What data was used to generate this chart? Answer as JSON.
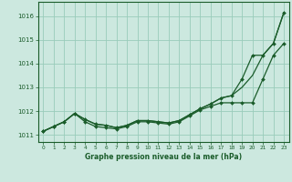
{
  "xlabel": "Graphe pression niveau de la mer (hPa)",
  "bg_color": "#cce8df",
  "grid_color": "#99ccbb",
  "line_color": "#1a5c2a",
  "text_color": "#1a5c2a",
  "ylim": [
    1010.7,
    1016.6
  ],
  "xlim": [
    -0.5,
    23.5
  ],
  "yticks": [
    1011,
    1012,
    1013,
    1014,
    1015,
    1016
  ],
  "xticks": [
    0,
    1,
    2,
    3,
    4,
    5,
    6,
    7,
    8,
    9,
    10,
    11,
    12,
    13,
    14,
    15,
    16,
    17,
    18,
    19,
    20,
    21,
    22,
    23
  ],
  "series_smooth": [
    1011.15,
    1011.35,
    1011.55,
    1011.9,
    1011.65,
    1011.45,
    1011.4,
    1011.3,
    1011.4,
    1011.6,
    1011.6,
    1011.55,
    1011.5,
    1011.6,
    1011.85,
    1012.1,
    1012.3,
    1012.55,
    1012.65,
    1013.0,
    1013.5,
    1014.35,
    1014.85,
    1016.15
  ],
  "series_top": [
    1011.15,
    1011.35,
    1011.55,
    1011.9,
    1011.65,
    1011.45,
    1011.4,
    1011.3,
    1011.4,
    1011.6,
    1011.6,
    1011.55,
    1011.5,
    1011.6,
    1011.85,
    1012.1,
    1012.3,
    1012.55,
    1012.65,
    1013.35,
    1014.35,
    1014.35,
    1014.85,
    1016.15
  ],
  "series_bot": [
    1011.15,
    1011.35,
    1011.55,
    1011.9,
    1011.55,
    1011.35,
    1011.3,
    1011.25,
    1011.35,
    1011.55,
    1011.55,
    1011.5,
    1011.45,
    1011.55,
    1011.8,
    1012.05,
    1012.2,
    1012.35,
    1012.35,
    1012.35,
    1012.35,
    1013.35,
    1014.35,
    1014.85
  ]
}
